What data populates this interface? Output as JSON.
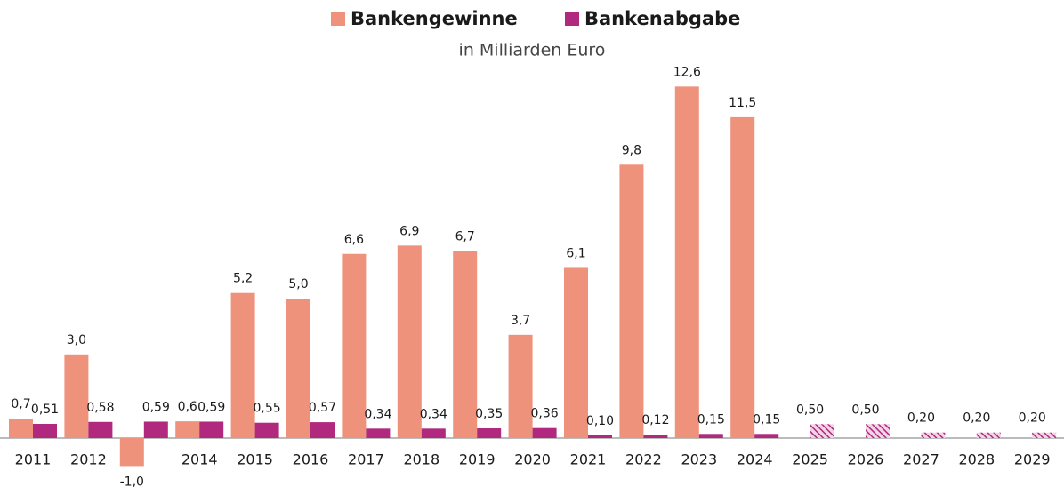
{
  "chart_data": {
    "type": "bar",
    "title": "in Milliarden Euro",
    "categories": [
      "2011",
      "2012",
      null,
      "2014",
      "2015",
      "2016",
      "2017",
      "2018",
      "2019",
      "2020",
      "2021",
      "2022",
      "2023",
      "2024",
      "2025",
      "2026",
      "2027",
      "2028",
      "2029"
    ],
    "series": [
      {
        "name": "Bankengewinne",
        "color": "#ef927b",
        "values": [
          0.7,
          3.0,
          -1.0,
          0.6,
          5.2,
          5.0,
          6.6,
          6.9,
          6.7,
          3.7,
          6.1,
          9.8,
          12.6,
          11.5,
          null,
          null,
          null,
          null,
          null
        ],
        "value_labels": [
          "0,7",
          "3,0",
          "-1,0",
          "0,6",
          "5,2",
          "5,0",
          "6,6",
          "6,9",
          "6,7",
          "3,7",
          "6,1",
          "9,8",
          "12,6",
          "11,5",
          null,
          null,
          null,
          null,
          null
        ]
      },
      {
        "name": "Bankenabgabe",
        "color": "#b0297f",
        "values": [
          0.51,
          0.58,
          0.59,
          0.59,
          0.55,
          0.57,
          0.34,
          0.34,
          0.35,
          0.36,
          0.1,
          0.12,
          0.15,
          0.15,
          0.5,
          0.5,
          0.2,
          0.2,
          0.2
        ],
        "value_labels": [
          "0,51",
          "0,58",
          "0,59",
          "0,59",
          "0,55",
          "0,57",
          "0,34",
          "0,34",
          "0,35",
          "0,36",
          "0,10",
          "0,12",
          "0,15",
          "0,15",
          "0,50",
          "0,50",
          "0,20",
          "0,20",
          "0,20"
        ]
      }
    ],
    "ylim": [
      -1.5,
      13.5
    ]
  }
}
